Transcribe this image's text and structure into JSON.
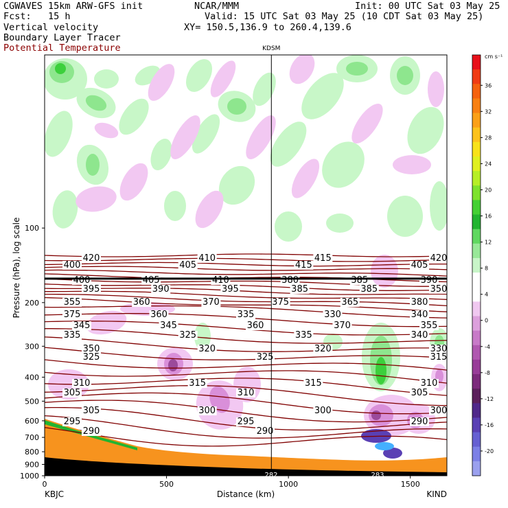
{
  "header": {
    "line1_left": "CGWAVES 15km ARW-GFS init",
    "line1_mid": "NCAR/MMM",
    "line1_right": "Init: 00 UTC Sat 03 May 25",
    "line2_left": "Fcst:   15 h",
    "line2_right": "Valid: 15 UTC Sat 03 May 25 (10 CDT Sat 03 May 25)",
    "line3_left": "Vertical velocity",
    "line3_right": "XY= 150.5,136.9 to 260.4,139.6",
    "line4_left": "Boundary Layer Tracer",
    "line5_left": "Potential Temperature"
  },
  "colors": {
    "theta": "#800000",
    "potential_temperature_label": "#8b0000",
    "tracer": "#f7931e",
    "up_light": "#c8f7c8",
    "up_mid": "#8ee68e",
    "up_strong": "#3cd03c",
    "down_light": "#f2c8f2",
    "down_mid": "#d98fd9",
    "down_strong": "#9b4a9b",
    "terrain": "#000000"
  },
  "chart_data": {
    "type": "heatmap",
    "title": "KDSM",
    "xlabel": "Distance (km)",
    "ylabel": "Pressure (hPa), log scale",
    "x_ticks": [
      0,
      500,
      1000,
      1500
    ],
    "xlim": [
      0,
      1650
    ],
    "y_ticks": [
      100,
      200,
      300,
      400,
      500,
      600,
      700,
      800,
      900,
      1000
    ],
    "y_scale": "log",
    "ylim": [
      1000,
      20
    ],
    "endpoint_left": "KBJC",
    "endpoint_right": "KIND",
    "station_marker_km": 930,
    "tropopause_hpa": 160,
    "colorbar": {
      "unit_label": "cm s⁻¹",
      "labels": [
        "36",
        "32",
        "28",
        "24",
        "20",
        "16",
        "12",
        "8",
        "4",
        "0",
        "-4",
        "-8",
        "-12",
        "-16",
        "-20"
      ],
      "colors": [
        "#e8101a",
        "#f03c14",
        "#f5620f",
        "#f88012",
        "#fba018",
        "#fcc21c",
        "#f8e21a",
        "#e0f020",
        "#b6ee26",
        "#7ee22c",
        "#44d034",
        "#22b430",
        "#60d860",
        "#98e898",
        "#c8f5c8",
        "#ffffff",
        "#ffffff",
        "#f0c8f0",
        "#dca0dc",
        "#c87ac8",
        "#b058b0",
        "#983c98",
        "#7c2a7c",
        "#5c205c",
        "#50288a",
        "#5a40b4",
        "#6660d2",
        "#7c80e6",
        "#9aa0ee"
      ]
    },
    "isentropes_k": [
      420,
      415,
      410,
      405,
      400,
      395,
      390,
      385,
      380,
      375,
      370,
      365,
      360,
      355,
      350,
      345,
      340,
      335,
      330,
      325,
      320,
      315,
      310,
      305,
      300,
      295,
      290
    ],
    "isentrope_labels": [
      "420",
      "410",
      "415",
      "420",
      "400",
      "405",
      "415",
      "405",
      "400",
      "405",
      "410",
      "380",
      "385",
      "390",
      "395",
      "390",
      "395",
      "385",
      "385",
      "350",
      "355",
      "360",
      "370",
      "375",
      "365",
      "380",
      "375",
      "360",
      "335",
      "330",
      "340",
      "345",
      "345",
      "360",
      "370",
      "355",
      "335",
      "325",
      "335",
      "340",
      "350",
      "320",
      "320",
      "330",
      "325",
      "325",
      "315",
      "310",
      "315",
      "315",
      "310",
      "305",
      "310",
      "305",
      "305",
      "300",
      "300",
      "300",
      "295",
      "295",
      "290",
      "290",
      "290"
    ],
    "surface_theta_labels": [
      "282",
      "283"
    ]
  }
}
